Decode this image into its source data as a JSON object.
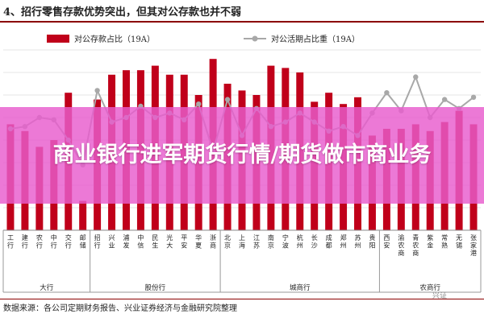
{
  "figure": {
    "title": "4、招行零售存款优势突出，但其对公存款也并不弱",
    "source": "数据来源：各公司定期财务报告、兴业证券经济与金融研究院整理",
    "watermark": "兴证",
    "overlay_text": "商业银行进军期货行情/期货做市商业务"
  },
  "colors": {
    "bar": "#c0001a",
    "line": "#a8a8a8",
    "overlay": "#e85ccd"
  },
  "chart_data": {
    "type": "bar",
    "categories": [
      "工行",
      "建行",
      "农行",
      "中行",
      "交行",
      "邮储",
      "招行",
      "兴业",
      "浦发",
      "中信",
      "民生",
      "光大",
      "平安",
      "华夏",
      "浙商",
      "北京",
      "上海",
      "江苏",
      "南京",
      "宁波",
      "杭州",
      "长沙",
      "成都",
      "郑州",
      "苏州",
      "贵阳",
      "西安",
      "渝农商",
      "青农商",
      "紫金",
      "常熟",
      "无锡",
      "张家港"
    ],
    "groups": [
      {
        "label": "大行",
        "count": 6
      },
      {
        "label": "股份行",
        "count": 9
      },
      {
        "label": "城商行",
        "count": 11
      },
      {
        "label": "农商行",
        "count": 7
      }
    ],
    "series": [
      {
        "name": "对公存款占比（19A）",
        "type": "bar",
        "values": [
          47,
          44,
          37,
          40,
          61,
          13,
          58,
          69,
          71,
          71,
          73,
          69,
          69,
          60,
          76,
          65,
          62,
          60,
          73,
          72,
          70,
          57,
          61,
          56,
          59,
          42,
          45,
          45,
          47,
          44,
          48,
          53,
          47
        ]
      },
      {
        "name": "对公活期占比重（19A）",
        "type": "line",
        "values": [
          45,
          46,
          50,
          49,
          40,
          29,
          62,
          48,
          50,
          55,
          50,
          52,
          49,
          56,
          35,
          58,
          42,
          54,
          46,
          48,
          52,
          48,
          44,
          46,
          42,
          52,
          61,
          53,
          68,
          50,
          58,
          54,
          59
        ]
      }
    ],
    "ylim": [
      0,
      80
    ],
    "grid": true,
    "legend": "top"
  }
}
